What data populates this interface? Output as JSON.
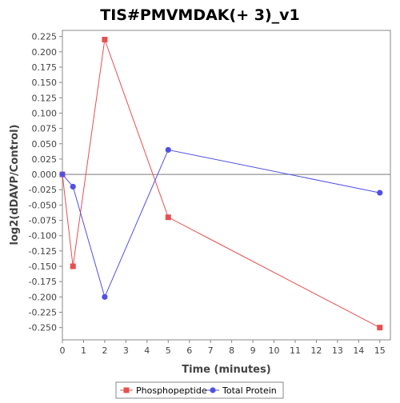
{
  "chart_data": {
    "type": "line",
    "title": "TIS#PMVMDAK(+ 3)_v1",
    "xlabel": "Time (minutes)",
    "ylabel": "log2(dDAVP/Control)",
    "xlim": [
      0,
      15.5
    ],
    "ylim": [
      -0.27,
      0.235
    ],
    "x_ticks": [
      0,
      1,
      2,
      3,
      4,
      5,
      6,
      7,
      8,
      9,
      10,
      11,
      12,
      13,
      14,
      15
    ],
    "y_ticks": [
      0.225,
      0.2,
      0.175,
      0.15,
      0.125,
      0.1,
      0.075,
      0.05,
      0.025,
      0.0,
      -0.025,
      -0.05,
      -0.075,
      -0.1,
      -0.125,
      -0.15,
      -0.175,
      -0.2,
      -0.225,
      -0.25
    ],
    "zero_line": true,
    "grid": false,
    "legend_position": "bottom",
    "series": [
      {
        "name": "Phosphopeptide",
        "marker": "square",
        "color": "#e84f4f",
        "x": [
          0,
          0.5,
          2,
          5,
          15
        ],
        "y": [
          0.0,
          -0.15,
          0.22,
          -0.07,
          -0.25
        ]
      },
      {
        "name": "Total Protein",
        "marker": "circle",
        "color": "#5050e6",
        "x": [
          0,
          0.5,
          2,
          5,
          15
        ],
        "y": [
          0.0,
          -0.02,
          -0.2,
          0.04,
          -0.03
        ]
      }
    ]
  }
}
